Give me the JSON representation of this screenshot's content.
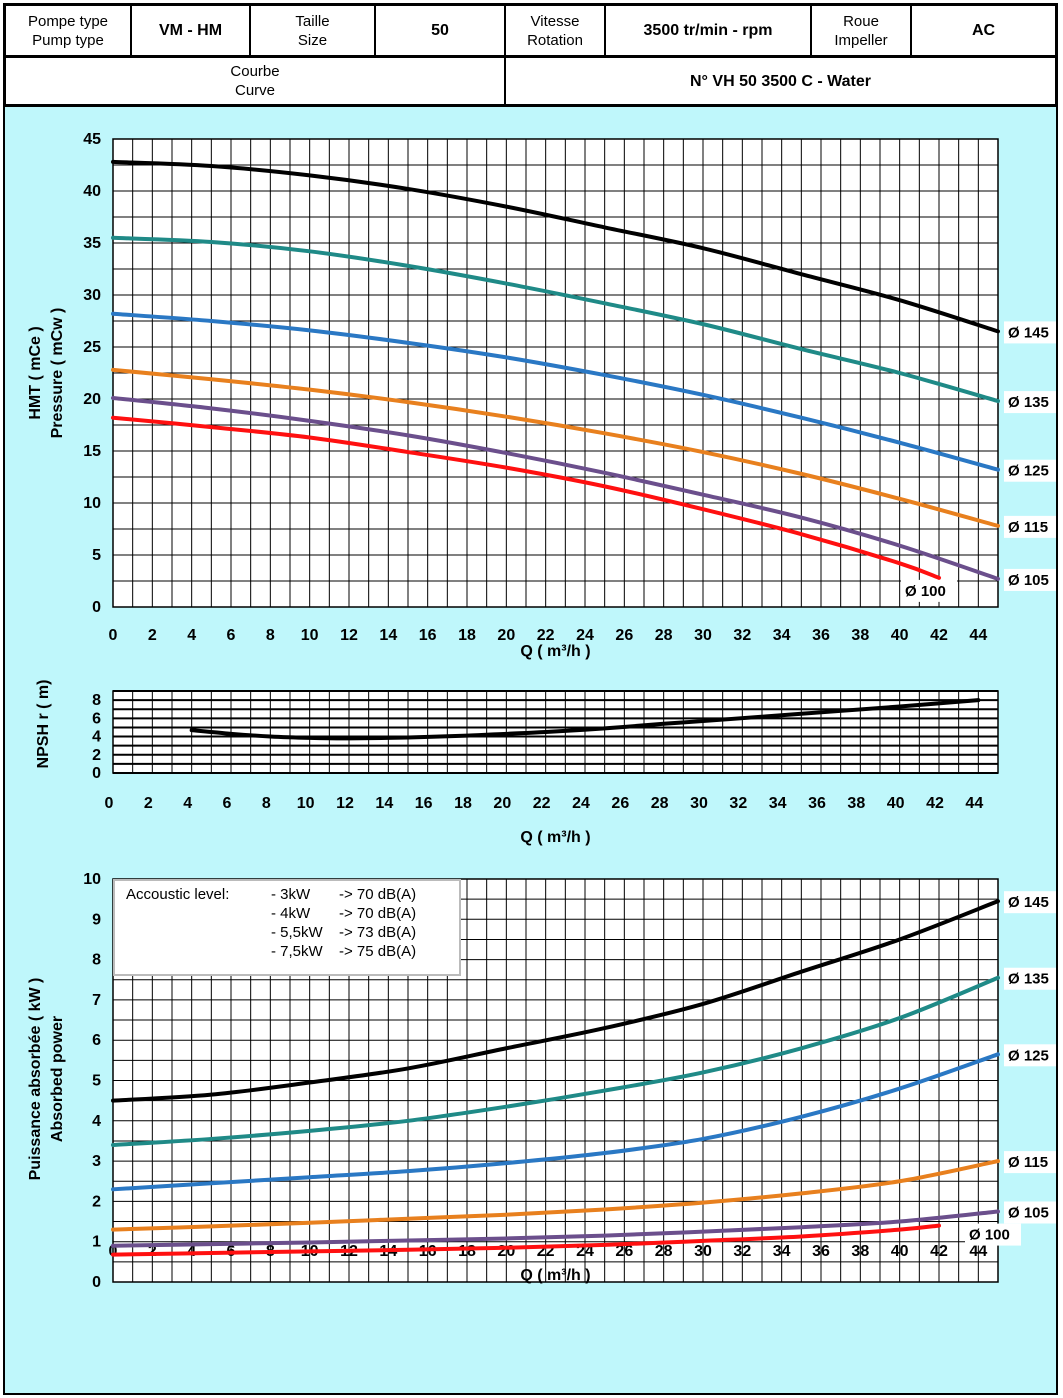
{
  "header": {
    "row1": [
      {
        "lines": [
          "Pompe type",
          "Pump type"
        ],
        "bold": false
      },
      {
        "lines": [
          "VM - HM"
        ],
        "bold": true
      },
      {
        "lines": [
          "Taille",
          "Size"
        ],
        "bold": false
      },
      {
        "lines": [
          "50"
        ],
        "bold": true
      },
      {
        "lines": [
          "Vitesse",
          "Rotation"
        ],
        "bold": false
      },
      {
        "lines": [
          "3500 tr/min - rpm"
        ],
        "bold": true
      },
      {
        "lines": [
          "Roue",
          "Impeller"
        ],
        "bold": false
      },
      {
        "lines": [
          "AC"
        ],
        "bold": true
      }
    ],
    "row2": [
      {
        "lines": [
          "Courbe",
          "Curve"
        ],
        "bold": false
      },
      {
        "lines": [
          "N° VH 50 3500 C - Water"
        ],
        "bold": true
      }
    ]
  },
  "colors": {
    "d145": "#000000",
    "d135": "#1f8a87",
    "d125": "#2a78c4",
    "d115": "#e8801e",
    "d105": "#6b4f8c",
    "d100": "#ff1010",
    "background": "#bff7fb"
  },
  "chart_data": [
    {
      "type": "line",
      "xlabel": "Q ( m³/h )",
      "ylabel": [
        "HMT ( mCe )",
        "Pressure ( mCw )"
      ],
      "xlim": [
        0,
        45
      ],
      "ylim": [
        0,
        45
      ],
      "xticks": [
        0,
        2,
        4,
        6,
        8,
        10,
        12,
        14,
        16,
        18,
        20,
        22,
        24,
        26,
        28,
        30,
        32,
        34,
        36,
        38,
        40,
        42,
        44
      ],
      "yticks": [
        0,
        5,
        10,
        15,
        20,
        25,
        30,
        35,
        40,
        45
      ],
      "grid": true,
      "series": [
        {
          "name": "Ø 145",
          "color_key": "d145",
          "x": [
            0,
            5,
            10,
            15,
            20,
            25,
            30,
            35,
            40,
            45
          ],
          "y": [
            42.8,
            42.4,
            41.5,
            40.2,
            38.5,
            36.5,
            34.5,
            32.0,
            29.5,
            26.5
          ]
        },
        {
          "name": "Ø 135",
          "color_key": "d135",
          "x": [
            0,
            5,
            10,
            15,
            20,
            25,
            30,
            35,
            40,
            45
          ],
          "y": [
            35.5,
            35.1,
            34.2,
            32.8,
            31.1,
            29.2,
            27.2,
            24.8,
            22.5,
            19.8
          ]
        },
        {
          "name": "Ø 125",
          "color_key": "d125",
          "x": [
            0,
            5,
            10,
            15,
            20,
            25,
            30,
            35,
            40,
            45
          ],
          "y": [
            28.2,
            27.5,
            26.6,
            25.4,
            24.0,
            22.3,
            20.4,
            18.2,
            15.8,
            13.2
          ]
        },
        {
          "name": "Ø 115",
          "color_key": "d115",
          "x": [
            0,
            5,
            10,
            15,
            20,
            25,
            30,
            35,
            40,
            45
          ],
          "y": [
            22.8,
            21.9,
            20.9,
            19.7,
            18.3,
            16.7,
            14.9,
            12.8,
            10.4,
            7.8
          ]
        },
        {
          "name": "Ø 105",
          "color_key": "d105",
          "x": [
            0,
            5,
            10,
            15,
            20,
            25,
            30,
            35,
            40,
            45
          ],
          "y": [
            20.1,
            19.1,
            17.9,
            16.5,
            14.8,
            12.9,
            10.8,
            8.6,
            5.9,
            2.7
          ]
        },
        {
          "name": "Ø 100",
          "color_key": "d100",
          "x": [
            0,
            5,
            10,
            15,
            20,
            25,
            30,
            35,
            40,
            42
          ],
          "y": [
            18.2,
            17.3,
            16.3,
            14.9,
            13.4,
            11.6,
            9.4,
            7.0,
            4.2,
            2.8
          ]
        }
      ]
    },
    {
      "type": "line",
      "xlabel": "Q ( m³/h )",
      "ylabel": "NPSH r ( m)",
      "xlim": [
        0,
        45
      ],
      "ylim": [
        0,
        9
      ],
      "xticks": [
        0,
        2,
        4,
        6,
        8,
        10,
        12,
        14,
        16,
        18,
        20,
        22,
        24,
        26,
        28,
        30,
        32,
        34,
        36,
        38,
        40,
        42,
        44
      ],
      "yticks": [
        0,
        2,
        4,
        6,
        8
      ],
      "grid": true,
      "series": [
        {
          "name": "",
          "color_key": "d145",
          "x": [
            4,
            6,
            8,
            10,
            12,
            15,
            18,
            20,
            22,
            25,
            28,
            30,
            35,
            40,
            44
          ],
          "y": [
            4.7,
            4.3,
            4.0,
            3.85,
            3.8,
            3.9,
            4.1,
            4.3,
            4.5,
            4.9,
            5.4,
            5.7,
            6.5,
            7.3,
            8.0
          ]
        }
      ]
    },
    {
      "type": "line",
      "xlabel": "Q ( m³/h )",
      "ylabel": [
        "Puissance absorbée ( kW )",
        "Absorbed power"
      ],
      "xlim": [
        0,
        45
      ],
      "ylim": [
        0,
        10
      ],
      "xticks": [
        0,
        2,
        4,
        6,
        8,
        10,
        12,
        14,
        16,
        18,
        20,
        22,
        24,
        26,
        28,
        30,
        32,
        34,
        36,
        38,
        40,
        42,
        44
      ],
      "yticks": [
        0,
        1,
        2,
        3,
        4,
        5,
        6,
        7,
        8,
        9,
        10
      ],
      "grid": true,
      "legend": {
        "title": "Accoustic level:",
        "lines": [
          {
            "power": "- 3kW",
            "level": "-> 70 dB(A)"
          },
          {
            "power": "- 4kW",
            "level": "-> 70 dB(A)"
          },
          {
            "power": "- 5,5kW",
            "level": "-> 73 dB(A)"
          },
          {
            "power": "- 7,5kW",
            "level": "-> 75 dB(A)"
          }
        ]
      },
      "series": [
        {
          "name": "Ø 145",
          "color_key": "d145",
          "x": [
            0,
            5,
            10,
            15,
            20,
            25,
            30,
            35,
            40,
            45
          ],
          "y": [
            4.5,
            4.65,
            4.95,
            5.3,
            5.8,
            6.3,
            6.9,
            7.7,
            8.5,
            9.45
          ]
        },
        {
          "name": "Ø 135",
          "color_key": "d135",
          "x": [
            0,
            5,
            10,
            15,
            20,
            25,
            30,
            35,
            40,
            45
          ],
          "y": [
            3.4,
            3.55,
            3.75,
            4.0,
            4.35,
            4.75,
            5.2,
            5.8,
            6.55,
            7.55
          ]
        },
        {
          "name": "Ø 125",
          "color_key": "d125",
          "x": [
            0,
            5,
            10,
            15,
            20,
            25,
            30,
            35,
            40,
            45
          ],
          "y": [
            2.3,
            2.45,
            2.6,
            2.75,
            2.95,
            3.2,
            3.55,
            4.1,
            4.8,
            5.65
          ]
        },
        {
          "name": "Ø 115",
          "color_key": "d115",
          "x": [
            0,
            5,
            10,
            15,
            20,
            25,
            30,
            35,
            40,
            45
          ],
          "y": [
            1.3,
            1.38,
            1.47,
            1.57,
            1.67,
            1.8,
            1.97,
            2.2,
            2.5,
            3.0
          ]
        },
        {
          "name": "Ø 105",
          "color_key": "d105",
          "x": [
            0,
            5,
            10,
            15,
            20,
            25,
            30,
            35,
            40,
            45
          ],
          "y": [
            0.9,
            0.94,
            0.98,
            1.03,
            1.08,
            1.15,
            1.25,
            1.36,
            1.5,
            1.75
          ]
        },
        {
          "name": "Ø 100",
          "color_key": "d100",
          "x": [
            0,
            5,
            10,
            15,
            20,
            25,
            30,
            35,
            40,
            42
          ],
          "y": [
            0.68,
            0.72,
            0.76,
            0.8,
            0.85,
            0.92,
            1.02,
            1.13,
            1.3,
            1.4
          ]
        }
      ]
    }
  ]
}
